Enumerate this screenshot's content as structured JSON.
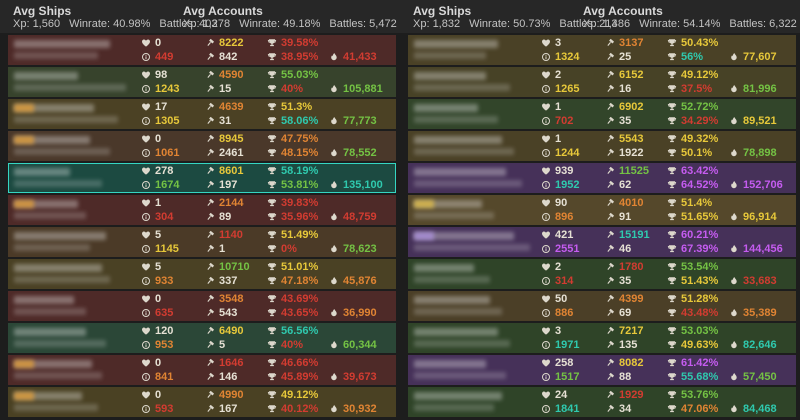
{
  "palette": {
    "w": "#e6e1d4",
    "r": "#d23c31",
    "o": "#e08433",
    "y": "#e7c83a",
    "g": "#74c244",
    "t": "#2fc9ae",
    "p": "#c55cf0",
    "selected_border": "#35d6c2",
    "header_bg": "#272727",
    "page_bg": "#1d1d1d"
  },
  "headers": {
    "left": {
      "ships": {
        "title": "Avg Ships",
        "xp": "Xp: 1,560",
        "winrate": "Winrate: 40.98%",
        "battles": "Battles: 403"
      },
      "accounts": {
        "title": "Avg Accounts",
        "xp": "Xp: 1,278",
        "winrate": "Winrate: 49.18%",
        "battles": "Battles: 5,472"
      }
    },
    "right": {
      "ships": {
        "title": "Avg Ships",
        "xp": "Xp: 1,832",
        "winrate": "Winrate: 50.73%",
        "battles": "Battles: 213"
      },
      "accounts": {
        "title": "Avg Accounts",
        "xp": "Xp: 1,486",
        "winrate": "Winrate: 54.14%",
        "battles": "Battles: 6,322"
      }
    }
  },
  "teams": [
    {
      "name": "left",
      "players": [
        {
          "bg": "#4e2a28",
          "sel": false,
          "mask": {
            "w1": 96,
            "w2": 84,
            "tag": null
          },
          "stats": {
            "heart": [
              "0",
              "w"
            ],
            "info": [
              "449",
              "r"
            ],
            "ham1": [
              "8222",
              "y"
            ],
            "ham2": [
              "842",
              "w"
            ],
            "tro1": [
              "39.58%",
              "r"
            ],
            "tro2": [
              "38.95%",
              "r"
            ],
            "flame": [
              "41,433",
              "r"
            ]
          }
        },
        {
          "bg": "#37432c",
          "sel": false,
          "mask": {
            "w1": 64,
            "w2": 112,
            "tag": null
          },
          "stats": {
            "heart": [
              "98",
              "w"
            ],
            "info": [
              "1243",
              "y"
            ],
            "ham1": [
              "4590",
              "o"
            ],
            "ham2": [
              "15",
              "w"
            ],
            "tro1": [
              "55.03%",
              "g"
            ],
            "tro2": [
              "40%",
              "r"
            ],
            "flame": [
              "105,881",
              "g"
            ]
          }
        },
        {
          "bg": "#4b4124",
          "sel": false,
          "mask": {
            "w1": 80,
            "w2": 104,
            "tag": "#d99a3c"
          },
          "stats": {
            "heart": [
              "17",
              "w"
            ],
            "info": [
              "1305",
              "y"
            ],
            "ham1": [
              "4639",
              "o"
            ],
            "ham2": [
              "31",
              "w"
            ],
            "tro1": [
              "51.3%",
              "y"
            ],
            "tro2": [
              "58.06%",
              "t"
            ],
            "flame": [
              "77,773",
              "g"
            ]
          }
        },
        {
          "bg": "#4a382a",
          "sel": false,
          "mask": {
            "w1": 76,
            "w2": 96,
            "tag": "#d99a3c"
          },
          "stats": {
            "heart": [
              "0",
              "w"
            ],
            "info": [
              "1061",
              "o"
            ],
            "ham1": [
              "8945",
              "y"
            ],
            "ham2": [
              "2461",
              "w"
            ],
            "tro1": [
              "47.75%",
              "o"
            ],
            "tro2": [
              "48.15%",
              "o"
            ],
            "flame": [
              "78,552",
              "g"
            ]
          }
        },
        {
          "bg": "#1c4a41",
          "sel": true,
          "mask": {
            "w1": 56,
            "w2": 88,
            "tag": null
          },
          "stats": {
            "heart": [
              "278",
              "w"
            ],
            "info": [
              "1674",
              "g"
            ],
            "ham1": [
              "8601",
              "y"
            ],
            "ham2": [
              "197",
              "w"
            ],
            "tro1": [
              "58.19%",
              "t"
            ],
            "tro2": [
              "53.81%",
              "g"
            ],
            "flame": [
              "135,100",
              "t"
            ]
          }
        },
        {
          "bg": "#4e2a28",
          "sel": false,
          "mask": {
            "w1": 64,
            "w2": 72,
            "tag": "#d99a3c"
          },
          "stats": {
            "heart": [
              "1",
              "w"
            ],
            "info": [
              "304",
              "r"
            ],
            "ham1": [
              "2144",
              "o"
            ],
            "ham2": [
              "89",
              "w"
            ],
            "tro1": [
              "39.83%",
              "r"
            ],
            "tro2": [
              "35.96%",
              "r"
            ],
            "flame": [
              "48,759",
              "r"
            ]
          }
        },
        {
          "bg": "#4b3a27",
          "sel": false,
          "mask": {
            "w1": 92,
            "w2": 76,
            "tag": null
          },
          "stats": {
            "heart": [
              "5",
              "w"
            ],
            "info": [
              "1145",
              "y"
            ],
            "ham1": [
              "1140",
              "r"
            ],
            "ham2": [
              "1",
              "w"
            ],
            "tro1": [
              "51.49%",
              "y"
            ],
            "tro2": [
              "0%",
              "r"
            ],
            "flame": [
              "78,623",
              "g"
            ]
          }
        },
        {
          "bg": "#4a4124",
          "sel": false,
          "mask": {
            "w1": 88,
            "w2": 96,
            "tag": null
          },
          "stats": {
            "heart": [
              "5",
              "w"
            ],
            "info": [
              "933",
              "o"
            ],
            "ham1": [
              "10710",
              "g"
            ],
            "ham2": [
              "337",
              "w"
            ],
            "tro1": [
              "51.01%",
              "y"
            ],
            "tro2": [
              "47.18%",
              "o"
            ],
            "flame": [
              "45,876",
              "o"
            ]
          }
        },
        {
          "bg": "#4e2a28",
          "sel": false,
          "mask": {
            "w1": 60,
            "w2": 72,
            "tag": null
          },
          "stats": {
            "heart": [
              "0",
              "w"
            ],
            "info": [
              "635",
              "r"
            ],
            "ham1": [
              "3548",
              "o"
            ],
            "ham2": [
              "543",
              "w"
            ],
            "tro1": [
              "43.69%",
              "r"
            ],
            "tro2": [
              "43.65%",
              "r"
            ],
            "flame": [
              "36,990",
              "o"
            ]
          }
        },
        {
          "bg": "#2b4737",
          "sel": false,
          "mask": {
            "w1": 72,
            "w2": 92,
            "tag": null
          },
          "stats": {
            "heart": [
              "120",
              "w"
            ],
            "info": [
              "953",
              "o"
            ],
            "ham1": [
              "6490",
              "y"
            ],
            "ham2": [
              "5",
              "w"
            ],
            "tro1": [
              "56.56%",
              "t"
            ],
            "tro2": [
              "40%",
              "r"
            ],
            "flame": [
              "60,344",
              "g"
            ]
          }
        },
        {
          "bg": "#4e2a28",
          "sel": false,
          "mask": {
            "w1": 78,
            "w2": 88,
            "tag": "#d99a3c"
          },
          "stats": {
            "heart": [
              "0",
              "w"
            ],
            "info": [
              "841",
              "o"
            ],
            "ham1": [
              "1646",
              "r"
            ],
            "ham2": [
              "146",
              "w"
            ],
            "tro1": [
              "46.66%",
              "r"
            ],
            "tro2": [
              "45.89%",
              "r"
            ],
            "flame": [
              "39,673",
              "r"
            ]
          }
        },
        {
          "bg": "#4a4123",
          "sel": false,
          "mask": {
            "w1": 68,
            "w2": 84,
            "tag": "#d99a3c"
          },
          "stats": {
            "heart": [
              "0",
              "w"
            ],
            "info": [
              "593",
              "r"
            ],
            "ham1": [
              "4990",
              "o"
            ],
            "ham2": [
              "167",
              "w"
            ],
            "tro1": [
              "49.12%",
              "y"
            ],
            "tro2": [
              "40.12%",
              "r"
            ],
            "flame": [
              "30,932",
              "o"
            ]
          }
        }
      ]
    },
    {
      "name": "right",
      "players": [
        {
          "bg": "#4a4126",
          "sel": false,
          "mask": {
            "w1": 84,
            "w2": 72,
            "tag": null
          },
          "stats": {
            "heart": [
              "3",
              "w"
            ],
            "info": [
              "1324",
              "y"
            ],
            "ham1": [
              "3137",
              "o"
            ],
            "ham2": [
              "25",
              "w"
            ],
            "tro1": [
              "50.43%",
              "y"
            ],
            "tro2": [
              "56%",
              "t"
            ],
            "flame": [
              "77,607",
              "y"
            ]
          }
        },
        {
          "bg": "#474226",
          "sel": false,
          "mask": {
            "w1": 72,
            "w2": 96,
            "tag": null
          },
          "stats": {
            "heart": [
              "2",
              "w"
            ],
            "info": [
              "1265",
              "y"
            ],
            "ham1": [
              "6152",
              "y"
            ],
            "ham2": [
              "16",
              "w"
            ],
            "tro1": [
              "49.12%",
              "y"
            ],
            "tro2": [
              "37.5%",
              "r"
            ],
            "flame": [
              "81,996",
              "g"
            ]
          }
        },
        {
          "bg": "#32452a",
          "sel": false,
          "mask": {
            "w1": 64,
            "w2": 84,
            "tag": null
          },
          "stats": {
            "heart": [
              "1",
              "w"
            ],
            "info": [
              "702",
              "r"
            ],
            "ham1": [
              "6902",
              "y"
            ],
            "ham2": [
              "35",
              "w"
            ],
            "tro1": [
              "52.72%",
              "g"
            ],
            "tro2": [
              "34.29%",
              "r"
            ],
            "flame": [
              "89,521",
              "y"
            ]
          }
        },
        {
          "bg": "#4a4126",
          "sel": false,
          "mask": {
            "w1": 88,
            "w2": 100,
            "tag": null
          },
          "stats": {
            "heart": [
              "1",
              "w"
            ],
            "info": [
              "1244",
              "y"
            ],
            "ham1": [
              "5543",
              "y"
            ],
            "ham2": [
              "1922",
              "w"
            ],
            "tro1": [
              "49.32%",
              "y"
            ],
            "tro2": [
              "50.1%",
              "y"
            ],
            "flame": [
              "78,898",
              "g"
            ]
          }
        },
        {
          "bg": "#463159",
          "sel": false,
          "mask": {
            "w1": 92,
            "w2": 108,
            "tag": null
          },
          "stats": {
            "heart": [
              "939",
              "w"
            ],
            "info": [
              "1952",
              "t"
            ],
            "ham1": [
              "11525",
              "g"
            ],
            "ham2": [
              "62",
              "w"
            ],
            "tro1": [
              "63.42%",
              "p"
            ],
            "tro2": [
              "64.52%",
              "p"
            ],
            "flame": [
              "152,706",
              "p"
            ]
          }
        },
        {
          "bg": "#55482b",
          "sel": false,
          "mask": {
            "w1": 68,
            "w2": 80,
            "tag": "#d9b84a"
          },
          "stats": {
            "heart": [
              "90",
              "w"
            ],
            "info": [
              "896",
              "o"
            ],
            "ham1": [
              "4010",
              "o"
            ],
            "ham2": [
              "91",
              "w"
            ],
            "tro1": [
              "51.4%",
              "y"
            ],
            "tro2": [
              "51.65%",
              "y"
            ],
            "flame": [
              "96,914",
              "y"
            ]
          }
        },
        {
          "bg": "#463159",
          "sel": false,
          "mask": {
            "w1": 100,
            "w2": 116,
            "tag": "#a98fd6"
          },
          "stats": {
            "heart": [
              "421",
              "w"
            ],
            "info": [
              "2551",
              "p"
            ],
            "ham1": [
              "15191",
              "t"
            ],
            "ham2": [
              "46",
              "w"
            ],
            "tro1": [
              "60.21%",
              "p"
            ],
            "tro2": [
              "67.39%",
              "p"
            ],
            "flame": [
              "144,456",
              "p"
            ]
          }
        },
        {
          "bg": "#2f4428",
          "sel": false,
          "mask": {
            "w1": 60,
            "w2": 76,
            "tag": null
          },
          "stats": {
            "heart": [
              "2",
              "w"
            ],
            "info": [
              "314",
              "r"
            ],
            "ham1": [
              "1780",
              "r"
            ],
            "ham2": [
              "35",
              "w"
            ],
            "tro1": [
              "53.54%",
              "g"
            ],
            "tro2": [
              "51.43%",
              "y"
            ],
            "flame": [
              "33,683",
              "r"
            ]
          }
        },
        {
          "bg": "#4b3f27",
          "sel": false,
          "mask": {
            "w1": 76,
            "w2": 88,
            "tag": null
          },
          "stats": {
            "heart": [
              "50",
              "w"
            ],
            "info": [
              "886",
              "o"
            ],
            "ham1": [
              "4399",
              "o"
            ],
            "ham2": [
              "69",
              "w"
            ],
            "tro1": [
              "51.28%",
              "y"
            ],
            "tro2": [
              "43.48%",
              "r"
            ],
            "flame": [
              "35,389",
              "o"
            ]
          }
        },
        {
          "bg": "#2f4428",
          "sel": false,
          "mask": {
            "w1": 84,
            "w2": 96,
            "tag": null
          },
          "stats": {
            "heart": [
              "3",
              "w"
            ],
            "info": [
              "1971",
              "t"
            ],
            "ham1": [
              "7217",
              "y"
            ],
            "ham2": [
              "135",
              "w"
            ],
            "tro1": [
              "53.03%",
              "g"
            ],
            "tro2": [
              "49.63%",
              "y"
            ],
            "flame": [
              "82,646",
              "t"
            ]
          }
        },
        {
          "bg": "#463159",
          "sel": false,
          "mask": {
            "w1": 72,
            "w2": 92,
            "tag": null
          },
          "stats": {
            "heart": [
              "258",
              "w"
            ],
            "info": [
              "1517",
              "g"
            ],
            "ham1": [
              "8082",
              "y"
            ],
            "ham2": [
              "88",
              "w"
            ],
            "tro1": [
              "61.42%",
              "p"
            ],
            "tro2": [
              "55.68%",
              "t"
            ],
            "flame": [
              "57,450",
              "g"
            ]
          }
        },
        {
          "bg": "#2f4428",
          "sel": false,
          "mask": {
            "w1": 88,
            "w2": 80,
            "tag": null
          },
          "stats": {
            "heart": [
              "24",
              "w"
            ],
            "info": [
              "1841",
              "t"
            ],
            "ham1": [
              "1929",
              "r"
            ],
            "ham2": [
              "34",
              "w"
            ],
            "tro1": [
              "53.76%",
              "g"
            ],
            "tro2": [
              "47.06%",
              "o"
            ],
            "flame": [
              "84,468",
              "t"
            ]
          }
        }
      ]
    }
  ]
}
